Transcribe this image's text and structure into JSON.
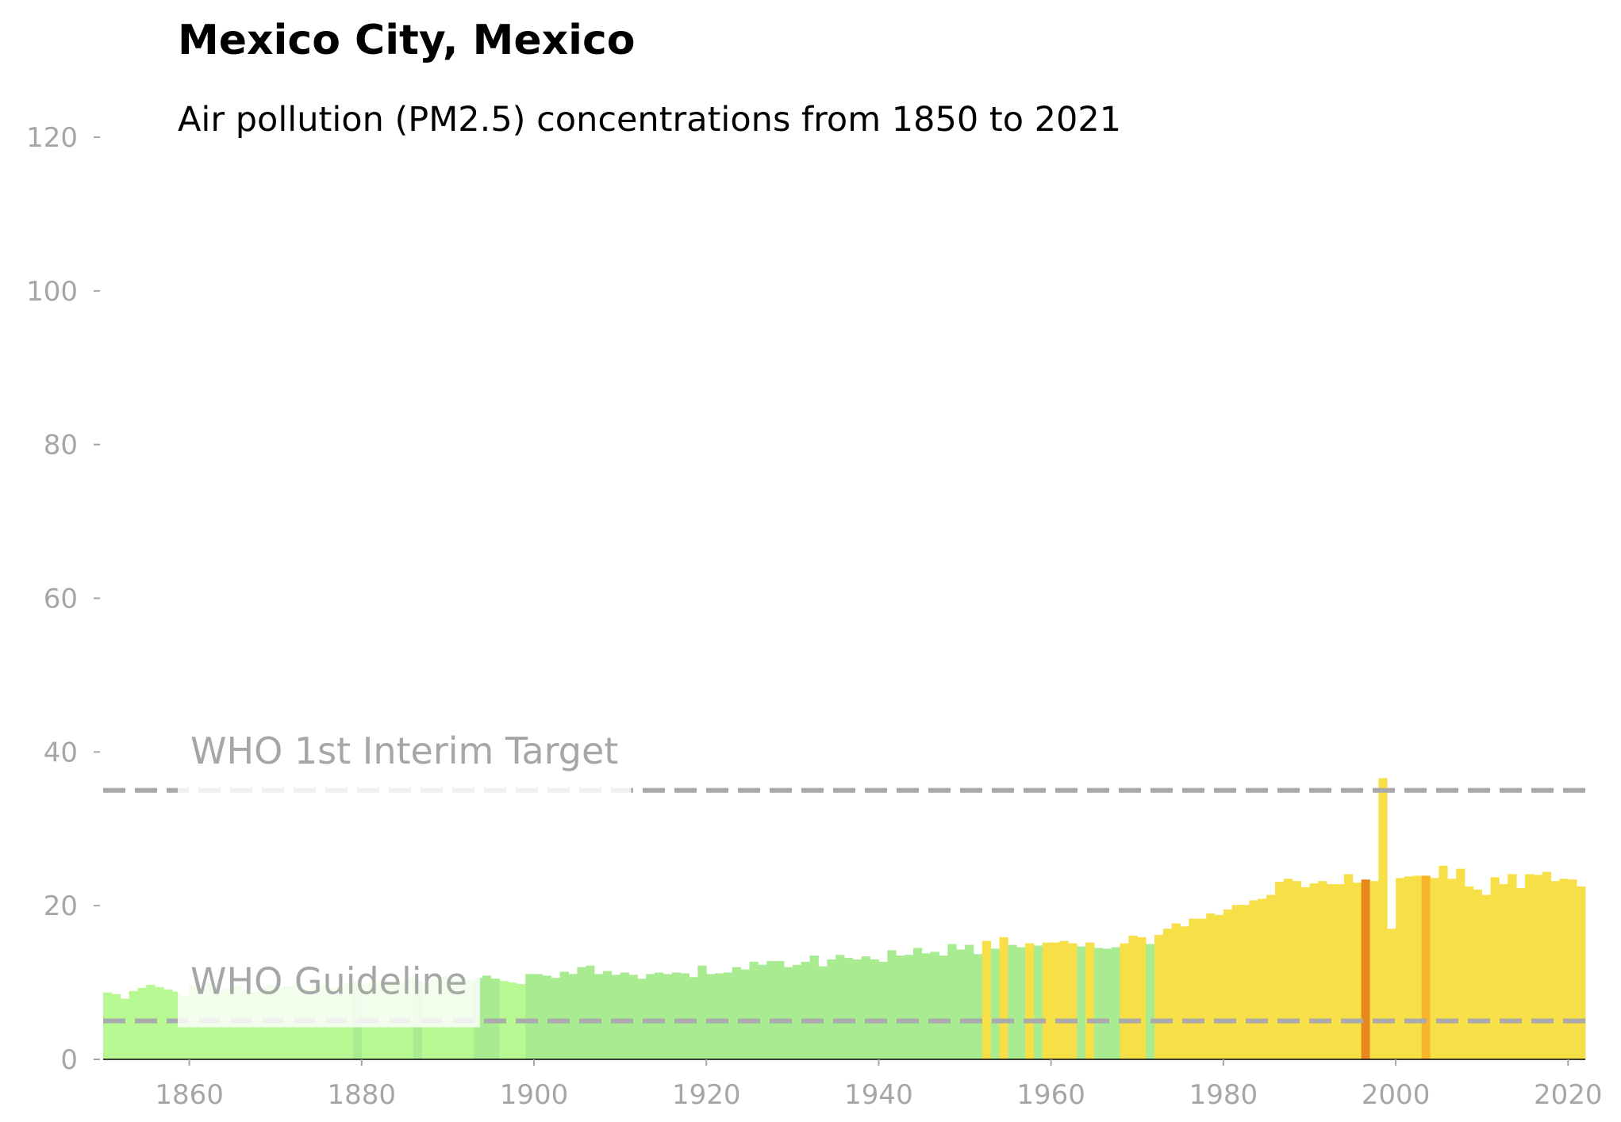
{
  "title": "Mexico City, Mexico",
  "subtitle": "Air pollution (PM2.5) concentrations from 1850 to 2021",
  "colors": {
    "good": "#b8f993",
    "moderate": "#a8eb91",
    "elevated": "#f7df48",
    "high": "#f8b52b",
    "very_high": "#e7871d",
    "reference_line": "#aaaaaa",
    "axis_text": "#a6a6a6"
  },
  "chart_data": {
    "type": "bar",
    "x_label": "",
    "y_label": "",
    "xlim": [
      1850,
      2022
    ],
    "ylim": [
      0,
      120
    ],
    "x_ticks": [
      1860,
      1880,
      1900,
      1920,
      1940,
      1960,
      1980,
      2000,
      2020
    ],
    "y_ticks": [
      0,
      20,
      40,
      60,
      80,
      100,
      120
    ],
    "grid": false,
    "reference_lines": [
      {
        "label": "WHO 1st Interim Target",
        "value": 35
      },
      {
        "label": "WHO Guideline",
        "value": 5
      }
    ],
    "years": [
      1850,
      1851,
      1852,
      1853,
      1854,
      1855,
      1856,
      1857,
      1858,
      1859,
      1860,
      1861,
      1862,
      1863,
      1864,
      1865,
      1866,
      1867,
      1868,
      1869,
      1870,
      1871,
      1872,
      1873,
      1874,
      1875,
      1876,
      1877,
      1878,
      1879,
      1880,
      1881,
      1882,
      1883,
      1884,
      1885,
      1886,
      1887,
      1888,
      1889,
      1890,
      1891,
      1892,
      1893,
      1894,
      1895,
      1896,
      1897,
      1898,
      1899,
      1900,
      1901,
      1902,
      1903,
      1904,
      1905,
      1906,
      1907,
      1908,
      1909,
      1910,
      1911,
      1912,
      1913,
      1914,
      1915,
      1916,
      1917,
      1918,
      1919,
      1920,
      1921,
      1922,
      1923,
      1924,
      1925,
      1926,
      1927,
      1928,
      1929,
      1930,
      1931,
      1932,
      1933,
      1934,
      1935,
      1936,
      1937,
      1938,
      1939,
      1940,
      1941,
      1942,
      1943,
      1944,
      1945,
      1946,
      1947,
      1948,
      1949,
      1950,
      1951,
      1952,
      1953,
      1954,
      1955,
      1956,
      1957,
      1958,
      1959,
      1960,
      1961,
      1962,
      1963,
      1964,
      1965,
      1966,
      1967,
      1968,
      1969,
      1970,
      1971,
      1972,
      1973,
      1974,
      1975,
      1976,
      1977,
      1978,
      1979,
      1980,
      1981,
      1982,
      1983,
      1984,
      1985,
      1986,
      1987,
      1988,
      1989,
      1990,
      1991,
      1992,
      1993,
      1994,
      1995,
      1996,
      1997,
      1998,
      1999,
      2000,
      2001,
      2002,
      2003,
      2004,
      2005,
      2006,
      2007,
      2008,
      2009,
      2010,
      2011,
      2012,
      2013,
      2014,
      2015,
      2016,
      2017,
      2018,
      2019,
      2020,
      2021
    ],
    "values": [
      8.7,
      8.5,
      7.9,
      8.9,
      9.3,
      9.7,
      9.4,
      9.1,
      8.8,
      8.3,
      9.6,
      9.2,
      9.8,
      8.9,
      9.3,
      9.6,
      9.1,
      8.8,
      9.4,
      9.7,
      9.2,
      9.5,
      9.8,
      9.1,
      9.4,
      9.7,
      9.3,
      9.6,
      9.9,
      10.2,
      9.7,
      10.1,
      10.4,
      9.9,
      10.3,
      10.6,
      10.2,
      10.0,
      10.5,
      10.8,
      10.4,
      10.7,
      10.3,
      10.6,
      10.9,
      10.5,
      10.2,
      10.0,
      9.8,
      11.1,
      11.1,
      10.9,
      10.6,
      11.4,
      11.1,
      12.0,
      12.2,
      11.1,
      11.5,
      11.0,
      11.3,
      11.0,
      10.5,
      11.1,
      11.3,
      11.1,
      11.3,
      11.2,
      10.7,
      12.2,
      11.1,
      11.2,
      11.3,
      12.0,
      11.7,
      12.7,
      12.3,
      12.8,
      12.8,
      12.0,
      12.3,
      12.7,
      13.5,
      12.1,
      13.0,
      13.6,
      13.2,
      13.0,
      13.4,
      13.0,
      12.7,
      14.2,
      13.5,
      13.6,
      14.5,
      13.8,
      14.0,
      13.5,
      15.0,
      14.3,
      14.9,
      13.7,
      15.4,
      14.4,
      15.9,
      14.9,
      14.6,
      15.1,
      14.8,
      15.2,
      15.2,
      15.4,
      15.1,
      14.7,
      15.2,
      14.5,
      14.4,
      14.6,
      15.1,
      16.1,
      15.9,
      15.0,
      16.2,
      17.0,
      17.7,
      17.3,
      18.3,
      18.3,
      19.0,
      18.8,
      19.5,
      20.1,
      20.1,
      20.7,
      20.9,
      21.4,
      23.1,
      23.5,
      23.2,
      22.4,
      22.9,
      23.2,
      22.8,
      22.8,
      24.1,
      23.0,
      23.4,
      23.2,
      36.6,
      17.0,
      23.6,
      23.8,
      23.9,
      23.9,
      23.6,
      25.2,
      23.5,
      24.8,
      22.5,
      22.1,
      21.4,
      23.7,
      22.8,
      24.1,
      22.3,
      24.1,
      24.0,
      24.4,
      23.2,
      23.5,
      23.4,
      22.5
    ],
    "category": [
      "good",
      "good",
      "good",
      "good",
      "good",
      "good",
      "good",
      "good",
      "good",
      "good",
      "good",
      "good",
      "good",
      "good",
      "good",
      "good",
      "good",
      "good",
      "good",
      "good",
      "good",
      "good",
      "good",
      "good",
      "good",
      "good",
      "good",
      "good",
      "good",
      "moderate",
      "good",
      "good",
      "good",
      "good",
      "good",
      "good",
      "moderate",
      "good",
      "good",
      "good",
      "good",
      "good",
      "good",
      "moderate",
      "moderate",
      "moderate",
      "good",
      "good",
      "good",
      "moderate",
      "moderate",
      "moderate",
      "moderate",
      "moderate",
      "moderate",
      "moderate",
      "moderate",
      "moderate",
      "moderate",
      "moderate",
      "moderate",
      "moderate",
      "moderate",
      "moderate",
      "moderate",
      "moderate",
      "moderate",
      "moderate",
      "moderate",
      "moderate",
      "moderate",
      "moderate",
      "moderate",
      "moderate",
      "moderate",
      "moderate",
      "moderate",
      "moderate",
      "moderate",
      "moderate",
      "moderate",
      "moderate",
      "moderate",
      "moderate",
      "moderate",
      "moderate",
      "moderate",
      "moderate",
      "moderate",
      "moderate",
      "moderate",
      "moderate",
      "moderate",
      "moderate",
      "moderate",
      "moderate",
      "moderate",
      "moderate",
      "moderate",
      "moderate",
      "moderate",
      "moderate",
      "elevated",
      "moderate",
      "elevated",
      "moderate",
      "moderate",
      "elevated",
      "moderate",
      "elevated",
      "elevated",
      "elevated",
      "elevated",
      "moderate",
      "elevated",
      "moderate",
      "moderate",
      "moderate",
      "elevated",
      "elevated",
      "elevated",
      "moderate",
      "elevated",
      "elevated",
      "elevated",
      "elevated",
      "elevated",
      "elevated",
      "elevated",
      "elevated",
      "elevated",
      "elevated",
      "elevated",
      "elevated",
      "elevated",
      "elevated",
      "elevated",
      "elevated",
      "elevated",
      "elevated",
      "elevated",
      "elevated",
      "elevated",
      "elevated",
      "elevated",
      "elevated",
      "very_high",
      "elevated",
      "elevated",
      "elevated",
      "elevated",
      "elevated",
      "elevated",
      "high",
      "elevated",
      "elevated",
      "elevated",
      "elevated",
      "elevated",
      "elevated",
      "elevated",
      "elevated",
      "elevated",
      "elevated",
      "elevated",
      "elevated",
      "elevated",
      "elevated",
      "elevated",
      "elevated"
    ]
  }
}
